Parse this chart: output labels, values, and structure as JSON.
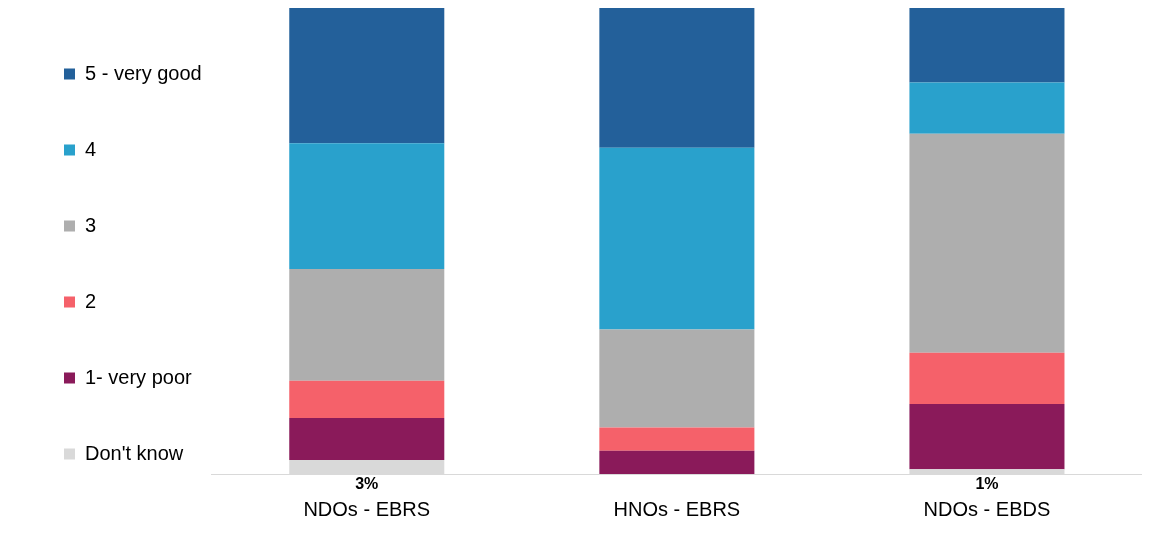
{
  "chart_data": {
    "type": "bar",
    "stacked": true,
    "categories": [
      "NDOs - EBRS",
      "HNOs - EBRS",
      "NDOs - EBDS"
    ],
    "ylim": [
      0,
      100
    ],
    "tick_labels": "x",
    "grid": false,
    "legend": "left",
    "series": [
      {
        "name": "Don't know",
        "color": "#d9d9d9",
        "values": [
          3,
          0,
          1
        ],
        "value_labels": [
          "3%",
          null,
          "1%"
        ]
      },
      {
        "name": "1- very poor",
        "color": "#8a1a5a",
        "values": [
          9,
          5,
          14
        ]
      },
      {
        "name": "2",
        "color": "#f5616a",
        "values": [
          8,
          5,
          11
        ]
      },
      {
        "name": "3",
        "color": "#aeaeae",
        "values": [
          24,
          21,
          47
        ]
      },
      {
        "name": "4",
        "color": "#29a1cc",
        "values": [
          27,
          39,
          11
        ]
      },
      {
        "name": "5 - very good",
        "color": "#23609a",
        "values": [
          29,
          30,
          16
        ]
      }
    ]
  }
}
